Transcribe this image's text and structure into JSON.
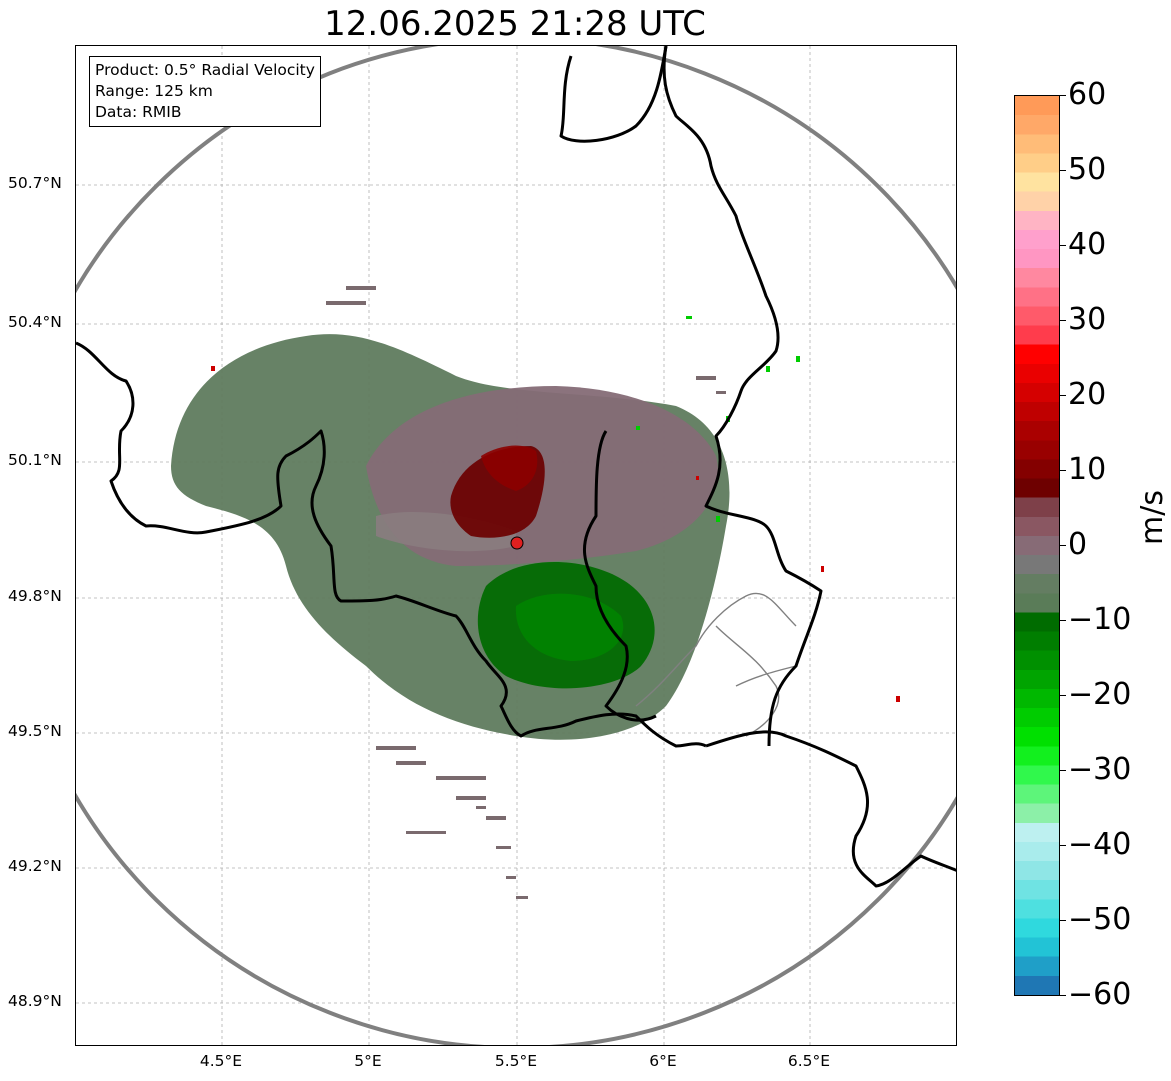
{
  "title": "12.06.2025 21:28 UTC",
  "info": {
    "product": "Product: 0.5° Radial Velocity",
    "range": "Range: 125 km",
    "data": "Data: RMIB"
  },
  "lat_labels": [
    "50.7°N",
    "50.4°N",
    "50.1°N",
    "49.8°N",
    "49.5°N",
    "49.2°N",
    "48.9°N"
  ],
  "lon_labels": [
    "4.5°E",
    "5°E",
    "5.5°E",
    "6°E",
    "6.5°E"
  ],
  "colorbar": {
    "label": "m/s",
    "ticks": [
      "60",
      "50",
      "40",
      "30",
      "20",
      "10",
      "0",
      "−10",
      "−20",
      "−30",
      "−40",
      "−50",
      "−60"
    ],
    "min": -60,
    "max": 60,
    "colors": [
      "#1f77b4",
      "#1f9fc8",
      "#22c3d6",
      "#2fd9de",
      "#4ee0e0",
      "#6fe3e3",
      "#8fe6e6",
      "#a9ecec",
      "#bdf0f0",
      "#8cf0a8",
      "#5df57a",
      "#30f84c",
      "#12f01e",
      "#00e000",
      "#00cc00",
      "#00b800",
      "#00a400",
      "#009000",
      "#007e00",
      "#006c00",
      "#5a7c58",
      "#647d62",
      "#787878",
      "#876b76",
      "#8a5762",
      "#7e4049",
      "#6e0000",
      "#840000",
      "#990000",
      "#aa0000",
      "#bf0000",
      "#d50000",
      "#ea0000",
      "#ff0000",
      "#ff3c4c",
      "#ff5a6a",
      "#ff7186",
      "#ff88a0",
      "#ff96c2",
      "#ffa0cc",
      "#ffb4c4",
      "#ffd2a8",
      "#ffe3a0",
      "#ffce88",
      "#ffbc78",
      "#ffa868",
      "#ff9a58"
    ]
  },
  "radar_site": {
    "lon": 5.5,
    "lat": 49.91
  }
}
